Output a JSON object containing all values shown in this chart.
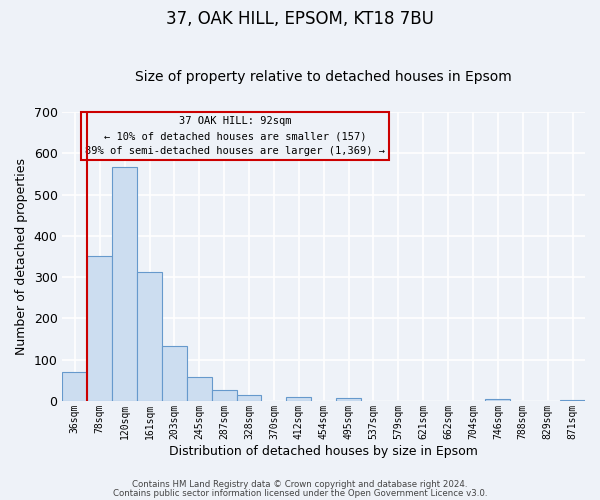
{
  "title": "37, OAK HILL, EPSOM, KT18 7BU",
  "subtitle": "Size of property relative to detached houses in Epsom",
  "xlabel": "Distribution of detached houses by size in Epsom",
  "ylabel": "Number of detached properties",
  "bar_labels": [
    "36sqm",
    "78sqm",
    "120sqm",
    "161sqm",
    "203sqm",
    "245sqm",
    "287sqm",
    "328sqm",
    "370sqm",
    "412sqm",
    "454sqm",
    "495sqm",
    "537sqm",
    "579sqm",
    "621sqm",
    "662sqm",
    "704sqm",
    "746sqm",
    "788sqm",
    "829sqm",
    "871sqm"
  ],
  "bar_values": [
    70,
    352,
    567,
    312,
    132,
    58,
    27,
    14,
    0,
    9,
    0,
    7,
    0,
    0,
    0,
    0,
    0,
    5,
    0,
    0,
    3
  ],
  "bar_color": "#ccddf0",
  "bar_edge_color": "#6699cc",
  "ylim": [
    0,
    700
  ],
  "yticks": [
    0,
    100,
    200,
    300,
    400,
    500,
    600,
    700
  ],
  "vline_color": "#cc0000",
  "annotation_title": "37 OAK HILL: 92sqm",
  "annotation_line1": "← 10% of detached houses are smaller (157)",
  "annotation_line2": "89% of semi-detached houses are larger (1,369) →",
  "annotation_box_color": "#cc0000",
  "footer_line1": "Contains HM Land Registry data © Crown copyright and database right 2024.",
  "footer_line2": "Contains public sector information licensed under the Open Government Licence v3.0.",
  "bg_color": "#eef2f8",
  "grid_color": "#ffffff",
  "title_fontsize": 12,
  "subtitle_fontsize": 10,
  "figsize": [
    6.0,
    5.0
  ],
  "dpi": 100
}
